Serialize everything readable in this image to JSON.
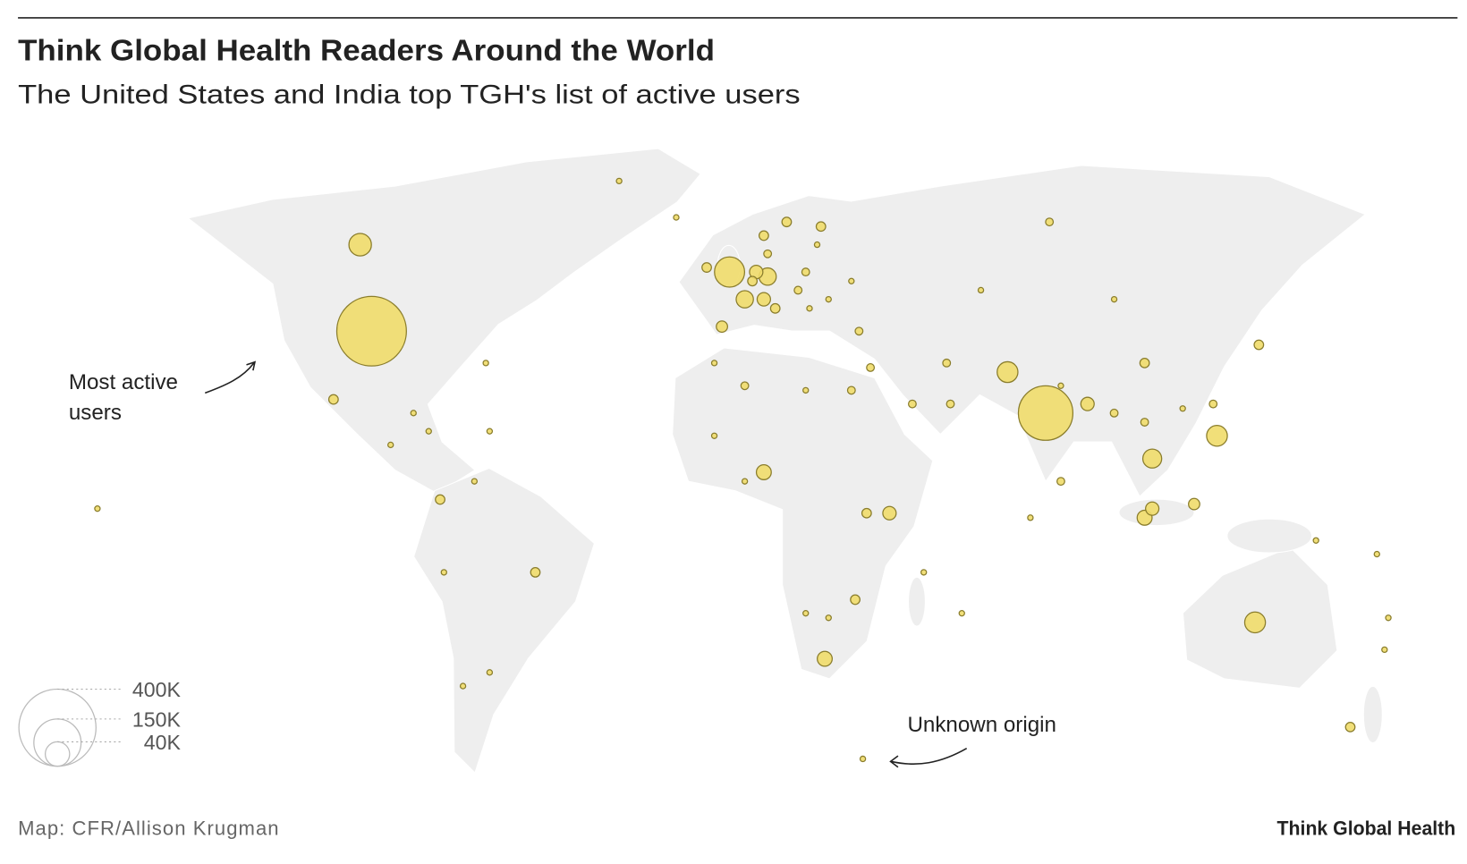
{
  "chart_data": {
    "type": "bubble-map",
    "title": "Think Global Health Readers Around the World",
    "subtitle": "The United States and India top TGH's list of active users",
    "color": "#f0dc6a",
    "lon": [
      -98,
      79,
      -4,
      -101,
      69,
      124,
      134,
      6,
      3,
      0,
      5,
      5,
      38,
      21,
      107,
      105,
      107,
      90,
      118,
      -6,
      -10,
      2,
      5,
      11,
      20,
      6,
      8,
      14,
      16,
      28,
      30,
      33,
      44,
      54,
      53,
      105,
      123,
      135,
      83,
      97,
      80,
      62,
      -55,
      -108,
      159,
      -67,
      -74,
      -79,
      -80,
      -71,
      32,
      0,
      16,
      0,
      -8,
      29,
      22,
      16,
      105,
      115,
      150,
      -33,
      -18,
      -68,
      -170,
      -83,
      -93,
      -87,
      -67,
      97,
      83,
      75,
      166,
      169,
      57,
      47,
      -8,
      31,
      168,
      17,
      22,
      19,
      28
    ],
    "lat": [
      39,
      21,
      52,
      58,
      30,
      16,
      -25,
      51,
      52,
      46,
      46,
      8,
      -1,
      -33,
      11,
      -2,
      0,
      23,
      1,
      40,
      53,
      50,
      60,
      63,
      62,
      56,
      44,
      48,
      52,
      26,
      39,
      31,
      23,
      23,
      32,
      32,
      23,
      36,
      6,
      21,
      63,
      48,
      -14,
      24,
      -48,
      -36,
      -39,
      -14,
      2,
      6,
      -1,
      6,
      26,
      27,
      32,
      -20,
      -24,
      -23,
      19,
      22,
      -7,
      72,
      64,
      32,
      0,
      17,
      14,
      21,
      17,
      46,
      27,
      -2,
      -10,
      -24,
      -23,
      -14,
      16,
      -55,
      -31,
      44,
      46,
      58,
      50
    ],
    "values": [
      326000,
      200000,
      61000,
      34000,
      29000,
      29000,
      29000,
      20000,
      12000,
      20000,
      12000,
      15000,
      12000,
      15000,
      24000,
      15000,
      12000,
      12000,
      8500,
      8500,
      6000,
      6000,
      6000,
      6000,
      6000,
      4000,
      6000,
      4000,
      4000,
      4000,
      4000,
      4000,
      4000,
      4000,
      4000,
      6000,
      4000,
      6000,
      4000,
      4000,
      4000,
      2000,
      6000,
      6000,
      6000,
      2000,
      2000,
      2000,
      6000,
      2000,
      6000,
      2000,
      2000,
      4000,
      2000,
      6000,
      2000,
      2000,
      4000,
      2000,
      2000,
      2000,
      2000,
      2000,
      2000,
      2000,
      2000,
      2000,
      2000,
      2000,
      2000,
      2000,
      2000,
      2000,
      2000,
      2000,
      2000,
      2000,
      2000,
      2000,
      2000,
      2000,
      2000
    ],
    "size_legend": [
      {
        "value": 400000,
        "label": "400K"
      },
      {
        "value": 150000,
        "label": "150K"
      },
      {
        "value": 40000,
        "label": "40K"
      }
    ],
    "annotations": [
      {
        "lines": [
          "Most active",
          "users"
        ]
      },
      {
        "lines": [
          "Unknown origin"
        ]
      }
    ],
    "source": "Map: CFR/Allison Krugman",
    "brand": "Think Global Health"
  }
}
